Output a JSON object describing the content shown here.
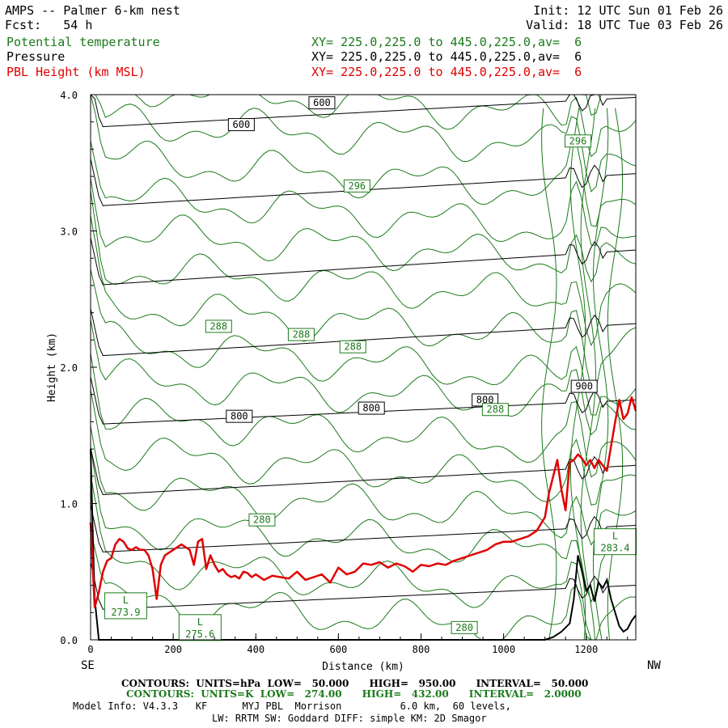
{
  "header": {
    "title_left": "AMPS -- Palmer 6-km nest",
    "fcst": "Fcst:   54 h",
    "init": "Init: 12 UTC Sun 01 Feb 26",
    "valid": "Valid: 18 UTC Tue 03 Feb 26",
    "field1": "Potential temperature",
    "field2": "Pressure",
    "field3": "PBL Height (km MSL)",
    "xy1": "XY= 225.0,225.0 to 445.0,225.0,av=  6",
    "xy2": "XY= 225.0,225.0 to 445.0,225.0,av=  6",
    "xy3": "XY= 225.0,225.0 to 445.0,225.0,av=  6"
  },
  "colors": {
    "theta": "#1a7a1a",
    "pressure": "#000000",
    "pbl": "#e00000"
  },
  "chart_data": {
    "type": "line",
    "xlabel": "Distance (km)",
    "ylabel": "Height (km)",
    "xlim": [
      0,
      1320
    ],
    "ylim": [
      0,
      4.0
    ],
    "x_ticks": [
      "0",
      "200",
      "400",
      "600",
      "800",
      "1000",
      "1200"
    ],
    "y_ticks": [
      "0.0",
      "1.0",
      "2.0",
      "3.0",
      "4.0"
    ],
    "left_end": "SE",
    "right_end": "NW",
    "pressure_levels": [
      {
        "start": 0.22,
        "end": 0.4
      },
      {
        "start": 0.64,
        "end": 0.84
      },
      {
        "start": 1.06,
        "end": 1.28
      },
      {
        "start": 1.58,
        "end": 1.76
      },
      {
        "start": 2.08,
        "end": 2.32
      },
      {
        "start": 2.6,
        "end": 2.86
      },
      {
        "start": 3.18,
        "end": 3.42
      },
      {
        "start": 3.76,
        "end": 3.98
      }
    ],
    "pressure_labels": [
      {
        "text": "600",
        "x": 365,
        "y": 3.78
      },
      {
        "text": "600",
        "x": 560,
        "y": 3.94
      },
      {
        "text": "800",
        "x": 360,
        "y": 1.64
      },
      {
        "text": "800",
        "x": 680,
        "y": 1.7
      },
      {
        "text": "800",
        "x": 955,
        "y": 1.76
      },
      {
        "text": "900",
        "x": 1195,
        "y": 1.86
      }
    ],
    "theta_labels": [
      {
        "text": "296",
        "x": 645,
        "y": 3.33
      },
      {
        "text": "296",
        "x": 1180,
        "y": 3.66
      },
      {
        "text": "288",
        "x": 310,
        "y": 2.3
      },
      {
        "text": "288",
        "x": 510,
        "y": 2.24
      },
      {
        "text": "288",
        "x": 635,
        "y": 2.15
      },
      {
        "text": "288",
        "x": 980,
        "y": 1.69
      },
      {
        "text": "280",
        "x": 415,
        "y": 0.88
      },
      {
        "text": "280",
        "x": 905,
        "y": 0.09
      }
    ],
    "lows": [
      {
        "text": "L",
        "value": "273.9",
        "x": 85,
        "y": 0.25
      },
      {
        "text": "L",
        "value": "275.6",
        "x": 265,
        "y": 0.09
      },
      {
        "text": "L",
        "value": "283.4",
        "x": 1270,
        "y": 0.72
      }
    ],
    "pbl_height": {
      "name": "PBL Height (km MSL)",
      "x": [
        0,
        10,
        20,
        30,
        40,
        50,
        60,
        70,
        80,
        90,
        100,
        110,
        120,
        130,
        140,
        150,
        160,
        170,
        180,
        190,
        200,
        210,
        220,
        230,
        240,
        250,
        260,
        270,
        280,
        290,
        300,
        310,
        320,
        330,
        340,
        350,
        360,
        370,
        380,
        390,
        400,
        420,
        440,
        460,
        480,
        500,
        520,
        540,
        560,
        580,
        600,
        620,
        640,
        660,
        680,
        700,
        720,
        740,
        760,
        780,
        800,
        820,
        840,
        860,
        880,
        900,
        920,
        940,
        960,
        980,
        1000,
        1020,
        1040,
        1060,
        1080,
        1100,
        1110,
        1120,
        1130,
        1140,
        1150,
        1160,
        1170,
        1180,
        1190,
        1200,
        1210,
        1220,
        1230,
        1240,
        1250,
        1260,
        1270,
        1280,
        1290,
        1300,
        1310,
        1320
      ],
      "y": [
        0.86,
        0.24,
        0.35,
        0.5,
        0.58,
        0.6,
        0.7,
        0.74,
        0.72,
        0.67,
        0.66,
        0.68,
        0.66,
        0.66,
        0.62,
        0.52,
        0.3,
        0.55,
        0.62,
        0.64,
        0.66,
        0.68,
        0.7,
        0.68,
        0.66,
        0.55,
        0.72,
        0.74,
        0.52,
        0.62,
        0.55,
        0.5,
        0.52,
        0.48,
        0.46,
        0.47,
        0.45,
        0.5,
        0.49,
        0.46,
        0.48,
        0.44,
        0.47,
        0.46,
        0.45,
        0.5,
        0.44,
        0.46,
        0.48,
        0.42,
        0.53,
        0.48,
        0.5,
        0.56,
        0.55,
        0.57,
        0.53,
        0.56,
        0.54,
        0.5,
        0.55,
        0.54,
        0.56,
        0.55,
        0.58,
        0.6,
        0.62,
        0.64,
        0.66,
        0.7,
        0.72,
        0.72,
        0.74,
        0.76,
        0.8,
        0.9,
        1.08,
        1.2,
        1.32,
        1.1,
        0.95,
        1.3,
        1.32,
        1.36,
        1.33,
        1.28,
        1.32,
        1.26,
        1.32,
        1.28,
        1.24,
        1.42,
        1.6,
        1.76,
        1.62,
        1.66,
        1.78,
        1.68
      ]
    },
    "terrain": {
      "x": [
        0,
        5,
        10,
        20,
        30,
        40,
        1100,
        1120,
        1140,
        1160,
        1170,
        1180,
        1190,
        1200,
        1210,
        1220,
        1230,
        1240,
        1250,
        1260,
        1270,
        1280,
        1290,
        1300,
        1310,
        1320
      ],
      "y": [
        1.4,
        0.8,
        0.3,
        0.0,
        0.0,
        0.0,
        0.0,
        0.02,
        0.06,
        0.12,
        0.3,
        0.62,
        0.5,
        0.36,
        0.4,
        0.28,
        0.42,
        0.38,
        0.44,
        0.3,
        0.2,
        0.1,
        0.06,
        0.08,
        0.14,
        0.18
      ]
    }
  },
  "footer": {
    "line1": "CONTOURS:  UNITS=hPa  LOW=   50.000      HIGH=   950.00      INTERVAL=   50.000",
    "line2": "CONTOURS:  UNITS=K  LOW=   274.00      HIGH=   432.00      INTERVAL=   2.0000",
    "line3": "Model Info: V4.3.3   KF      MYJ PBL  Morrison          6.0 km,  60 levels,",
    "line4": "LW: RRTM SW: Goddard DIFF: simple KM: 2D Smagor"
  }
}
